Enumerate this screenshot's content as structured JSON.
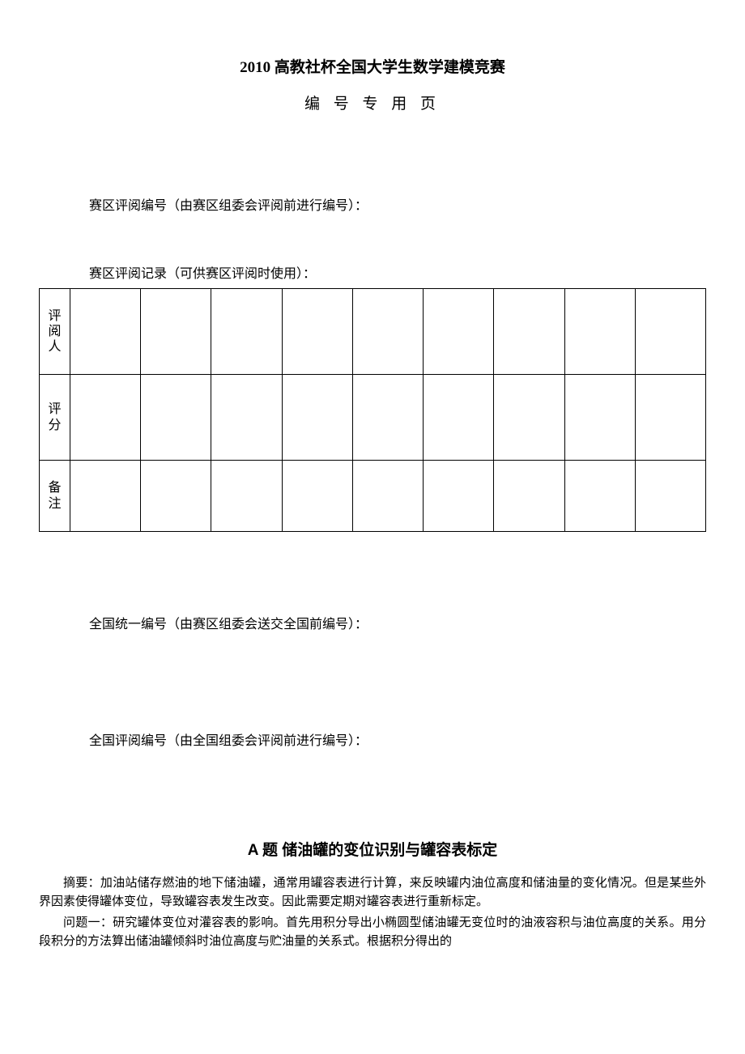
{
  "header": {
    "main_title": "2010 高教社杯全国大学生数学建模竞赛",
    "sub_title": "编 号 专 用 页"
  },
  "fields": {
    "regional_eval_number": "赛区评阅编号（由赛区组委会评阅前进行编号）：",
    "regional_eval_record": "赛区评阅记录（可供赛区评阅时使用）：",
    "national_unified_number": "全国统一编号（由赛区组委会送交全国前编号）：",
    "national_eval_number": "全国评阅编号（由全国组委会评阅前进行编号）："
  },
  "eval_table": {
    "row_labels": [
      "评阅人",
      "评分",
      "备注"
    ],
    "columns_count": 9,
    "border_color": "#000000"
  },
  "section": {
    "title": "A 题  储油罐的变位识别与罐容表标定",
    "paragraphs": [
      "摘要：加油站储存燃油的地下储油罐，通常用罐容表进行计算，来反映罐内油位高度和储油量的变化情况。但是某些外界因素使得罐体变位，导致罐容表发生改变。因此需要定期对罐容表进行重新标定。",
      "问题一：研究罐体变位对灌容表的影响。首先用积分导出小椭圆型储油罐无变位时的油液容积与油位高度的关系。用分段积分的方法算出储油罐倾斜时油位高度与贮油量的关系式。根据积分得出的"
    ]
  },
  "style": {
    "background_color": "#ffffff",
    "text_color": "#000000",
    "title_fontsize": 19,
    "body_fontsize": 15,
    "field_fontsize": 16
  }
}
